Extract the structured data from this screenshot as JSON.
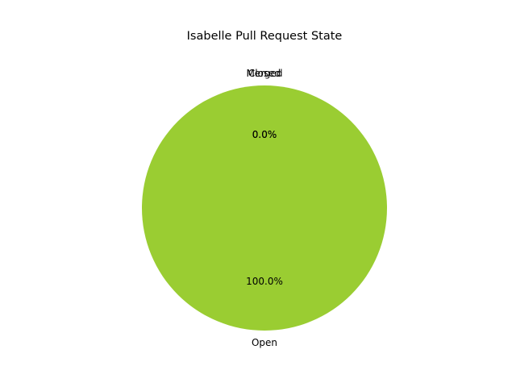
{
  "chart_data": {
    "type": "pie",
    "title": "Isabelle Pull Request State",
    "slices": [
      {
        "label": "Open",
        "value": 100.0,
        "pct_label": "100.0%",
        "color": "#9acd32"
      },
      {
        "label": "Closed",
        "value": 0.0,
        "pct_label": "0.0%",
        "color": "#ffd700"
      },
      {
        "label": "Merged",
        "value": 0.0,
        "pct_label": "0.0%",
        "color": "#6495ed"
      }
    ],
    "start_angle": 90,
    "legend": "none"
  }
}
